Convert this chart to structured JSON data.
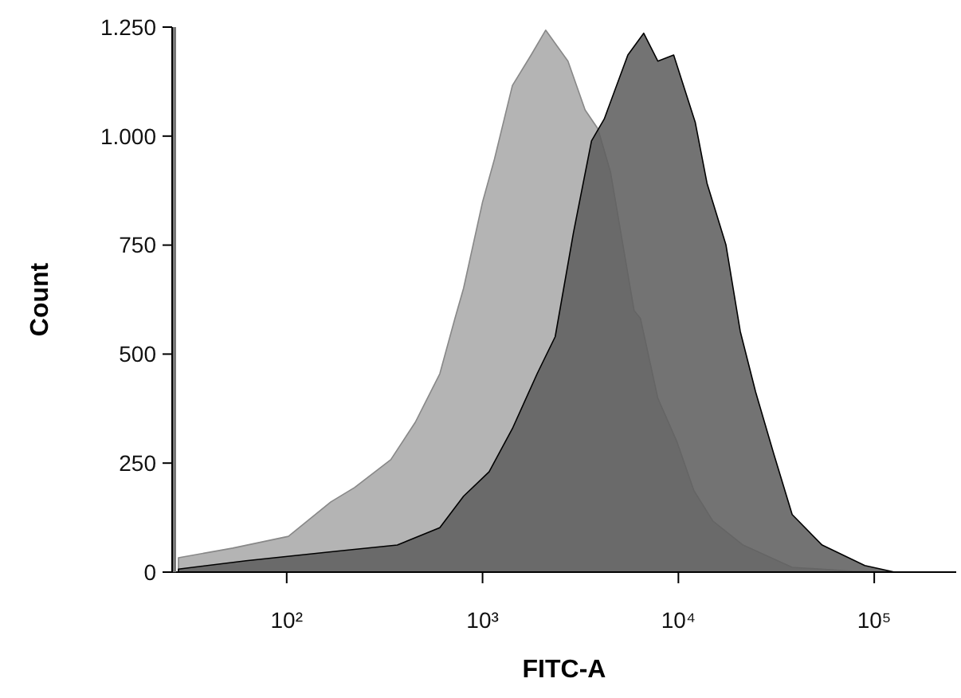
{
  "chart_data": {
    "type": "area",
    "xlabel": "FITC-A",
    "ylabel": "Count",
    "log": "x",
    "xlim": [
      26,
      262144
    ],
    "ylim": [
      0,
      1250
    ],
    "xticks": [
      {
        "value": 100,
        "label": "10²"
      },
      {
        "value": 1000,
        "label": "10³"
      },
      {
        "value": 10000,
        "label": "10⁴"
      },
      {
        "value": 100000,
        "label": "10⁵"
      }
    ],
    "yticks": [
      0,
      250,
      500,
      750,
      {
        "value": 1000,
        "label": "1.000"
      },
      {
        "value": 1250,
        "label": "1.250"
      }
    ],
    "grid": false,
    "series": [
      {
        "color": "#b4b4b4",
        "x": [
          28,
          53,
          102,
          168,
          222,
          340,
          454,
          605,
          723,
          800,
          1000,
          1150,
          1420,
          1770,
          2100,
          2730,
          3340,
          3880,
          4500,
          5940,
          6400,
          7850,
          9810,
          12000,
          15000,
          21400,
          38100,
          77100,
          115000
        ],
        "values": [
          33,
          55,
          82,
          161,
          194,
          258,
          344,
          455,
          582,
          651,
          849,
          947,
          1116,
          1186,
          1243,
          1172,
          1060,
          1017,
          918,
          600,
          582,
          399,
          300,
          187,
          117,
          62,
          11,
          2,
          0
        ]
      },
      {
        "color": "#606060",
        "x": [
          28,
          62,
          180,
          367,
          605,
          800,
          1080,
          1420,
          1900,
          2350,
          2910,
          3600,
          4180,
          5520,
          6650,
          7850,
          9460,
          12200,
          14000,
          17500,
          20700,
          24800,
          30700,
          38100,
          54200,
          89500,
          127000
        ],
        "values": [
          7,
          26,
          48,
          62,
          102,
          174,
          230,
          329,
          455,
          540,
          778,
          989,
          1039,
          1186,
          1236,
          1172,
          1186,
          1031,
          892,
          750,
          552,
          413,
          271,
          132,
          62,
          15,
          0
        ]
      }
    ]
  }
}
